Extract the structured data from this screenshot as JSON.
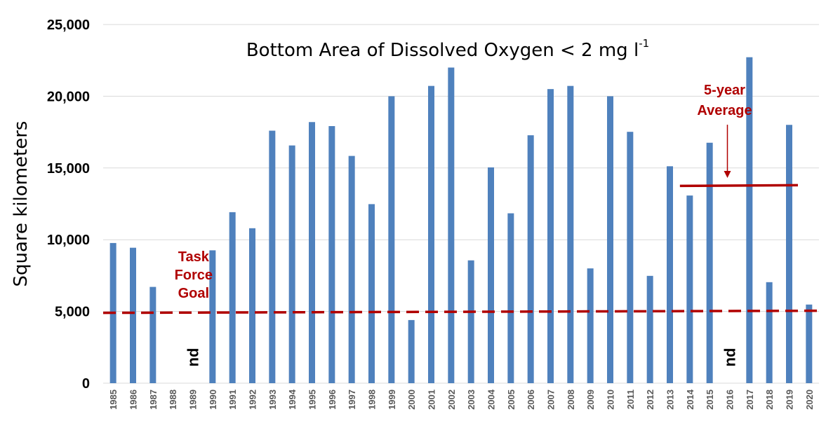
{
  "chart_data": {
    "type": "bar",
    "title": "Bottom Area of Dissolved Oxygen < 2 mg l",
    "title_superscript": "-1",
    "xlabel": "",
    "ylabel": "Square kilometers",
    "ylim": [
      0,
      25000
    ],
    "yticks": [
      "0",
      "5,000",
      "10,000",
      "15,000",
      "20,000",
      "25,000"
    ],
    "ytick_values": [
      0,
      5000,
      10000,
      15000,
      20000,
      25000
    ],
    "grid": true,
    "bar_color": "#4f81bd",
    "categories": [
      "1985",
      "1986",
      "1987",
      "1988",
      "1989",
      "1990",
      "1991",
      "1992",
      "1993",
      "1994",
      "1995",
      "1996",
      "1997",
      "1998",
      "1999",
      "2000",
      "2001",
      "2002",
      "2003",
      "2004",
      "2005",
      "2006",
      "2007",
      "2008",
      "2009",
      "2010",
      "2011",
      "2012",
      "2013",
      "2014",
      "2015",
      "2016",
      "2017",
      "2018",
      "2019",
      "2020"
    ],
    "values": [
      9770,
      9440,
      6710,
      null,
      null,
      9260,
      11920,
      10800,
      17600,
      16570,
      18200,
      17920,
      15840,
      12480,
      20000,
      4400,
      20720,
      22000,
      8560,
      15040,
      11840,
      17280,
      20500,
      20720,
      8000,
      20000,
      17520,
      7480,
      15120,
      13080,
      16760,
      null,
      22720,
      7040,
      18005,
      5480
    ],
    "no_data_label": "nd",
    "no_data_years": [
      "1989",
      "2016"
    ],
    "task_force_goal": {
      "label_lines": [
        "Task",
        "Force",
        "Goal"
      ],
      "value": 5000,
      "color": "#b00000"
    },
    "five_year_average": {
      "label_lines": [
        "5-year",
        "Average"
      ],
      "value": 13800,
      "color": "#b00000"
    }
  }
}
